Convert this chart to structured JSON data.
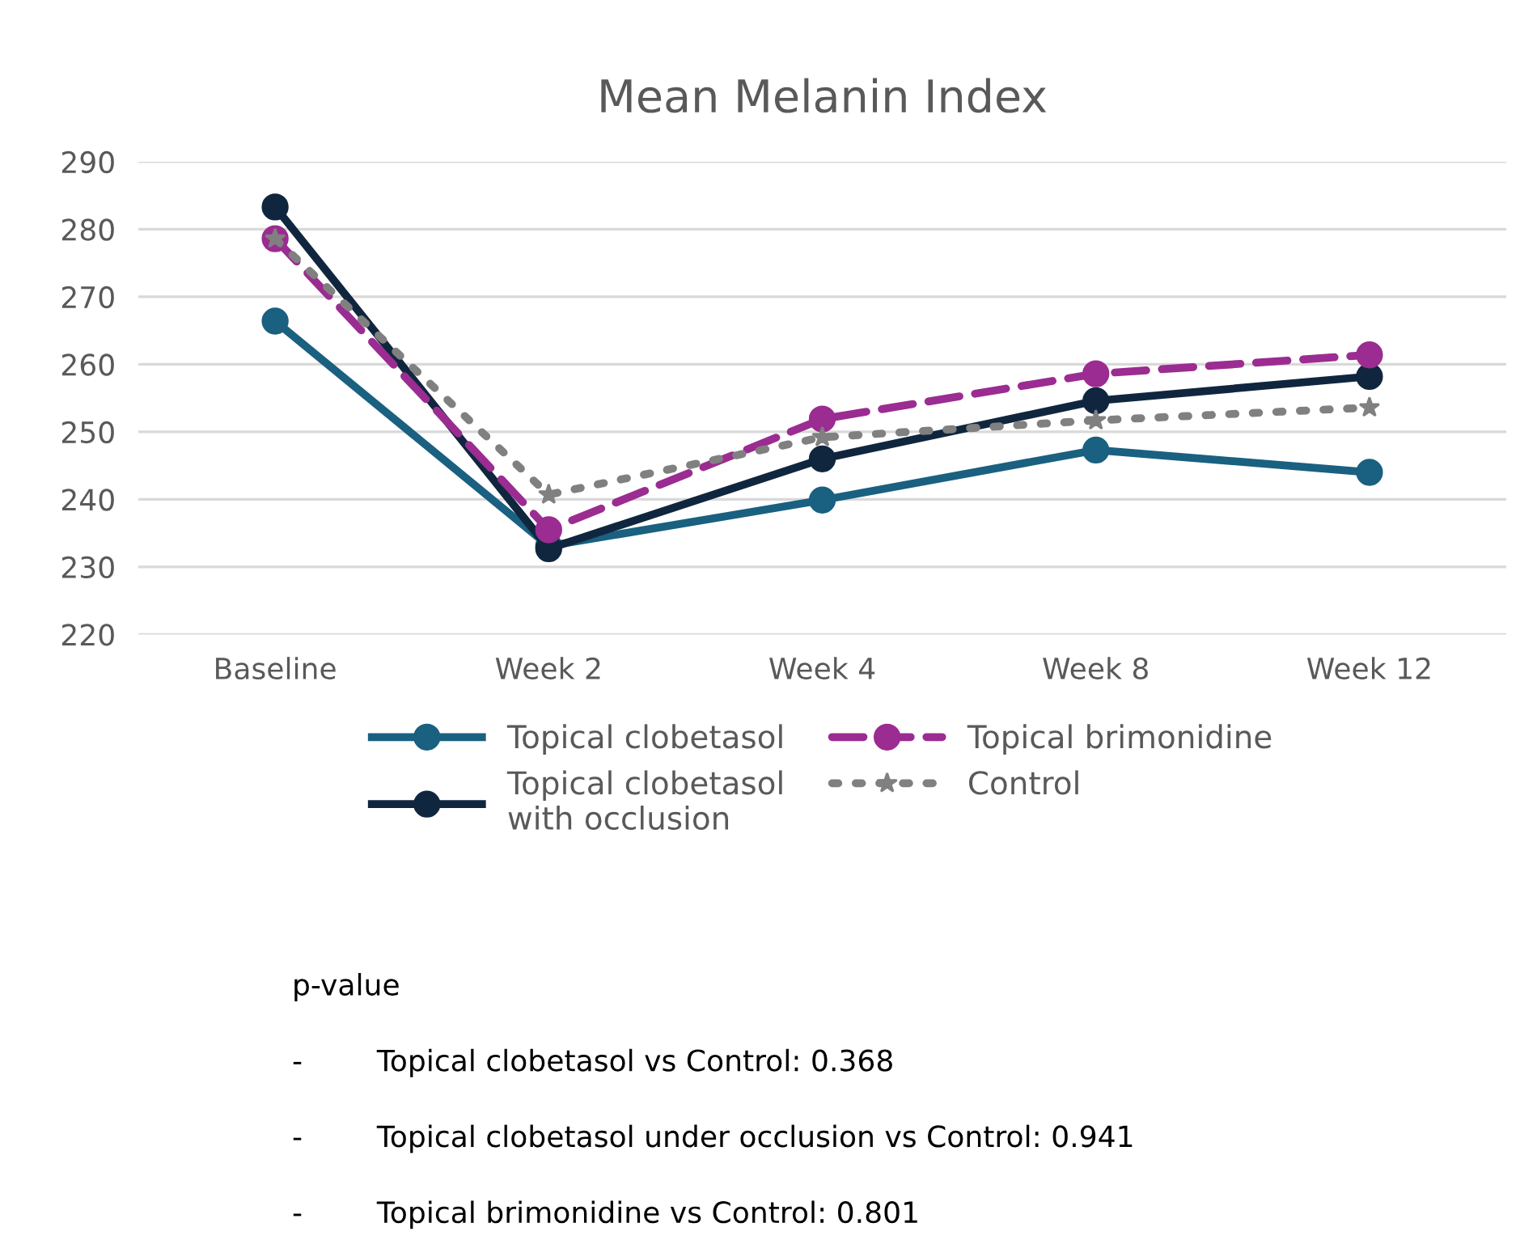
{
  "chart_data": {
    "type": "line",
    "title": "Mean Melanin Index",
    "categories": [
      "Baseline",
      "Week 2",
      "Week 4",
      "Week 8",
      "Week 12"
    ],
    "series": [
      {
        "name": "Topical clobetasol",
        "color": "#1a6080",
        "values": [
          266.4,
          233.1,
          239.9,
          247.3,
          244.0
        ],
        "line_style": "solid",
        "marker": "circle"
      },
      {
        "name": "Topical clobetasol\nwith occlusion",
        "color": "#10263f",
        "values": [
          283.3,
          232.7,
          246.0,
          254.6,
          258.2
        ],
        "line_style": "solid",
        "marker": "circle"
      },
      {
        "name": "Topical brimonidine",
        "color": "#9b2c91",
        "values": [
          278.6,
          235.5,
          251.9,
          258.6,
          261.4
        ],
        "line_style": "dashed",
        "marker": "circle"
      },
      {
        "name": "Control",
        "color": "#808080",
        "values": [
          278.6,
          240.7,
          249.2,
          251.7,
          253.6
        ],
        "line_style": "dotted",
        "marker": "star"
      }
    ],
    "ylim": [
      220,
      290
    ],
    "yticks": [
      220,
      230,
      240,
      250,
      260,
      270,
      280,
      290
    ],
    "grid": "y",
    "legend": "bottom",
    "annotations": [
      "p-value",
      "-\tTopical clobetasol vs Control: 0.368",
      "-\tTopical clobetasol under occlusion vs Control: 0.941",
      "-\tTopical brimonidine vs Control: 0.801"
    ]
  }
}
